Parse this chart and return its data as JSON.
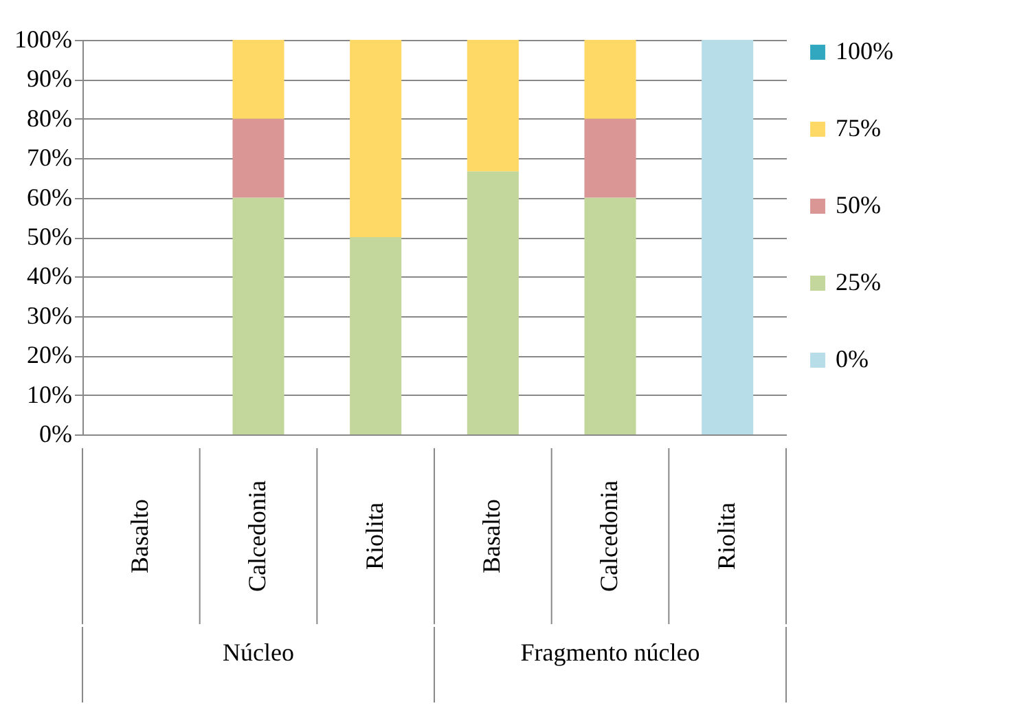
{
  "chart_data": {
    "type": "bar",
    "stacked": true,
    "categories": [
      "Basalto",
      "Calcedonia",
      "Riolita",
      "Basalto",
      "Calcedonia",
      "Riolita"
    ],
    "annotations": [
      "Núcleo",
      "Fragmento núcleo"
    ],
    "series": [
      {
        "name": "0%",
        "color": "#b7dde8",
        "values": [
          0,
          0,
          0,
          0,
          0,
          100
        ]
      },
      {
        "name": "25%",
        "color": "#c3d69b",
        "values": [
          0,
          60,
          50,
          66.7,
          60,
          0
        ]
      },
      {
        "name": "50%",
        "color": "#d99694",
        "values": [
          0,
          20,
          0,
          0,
          20,
          0
        ]
      },
      {
        "name": "75%",
        "color": "#ffd966",
        "values": [
          0,
          20,
          50,
          33.3,
          20,
          0
        ]
      },
      {
        "name": "100%",
        "color": "#31a8c0",
        "values": [
          0,
          0,
          0,
          0,
          0,
          0
        ]
      }
    ],
    "ylim": [
      0,
      100
    ],
    "yticks": [
      {
        "value": 0,
        "label": "0%"
      },
      {
        "value": 10,
        "label": "10%"
      },
      {
        "value": 20,
        "label": "20%"
      },
      {
        "value": 30,
        "label": "30%"
      },
      {
        "value": 40,
        "label": "40%"
      },
      {
        "value": 50,
        "label": "50%"
      },
      {
        "value": 60,
        "label": "60%"
      },
      {
        "value": 70,
        "label": "70%"
      },
      {
        "value": 80,
        "label": "80%"
      },
      {
        "value": 90,
        "label": "90%"
      },
      {
        "value": 100,
        "label": "100%"
      }
    ],
    "grid": "y",
    "legend": "right"
  }
}
